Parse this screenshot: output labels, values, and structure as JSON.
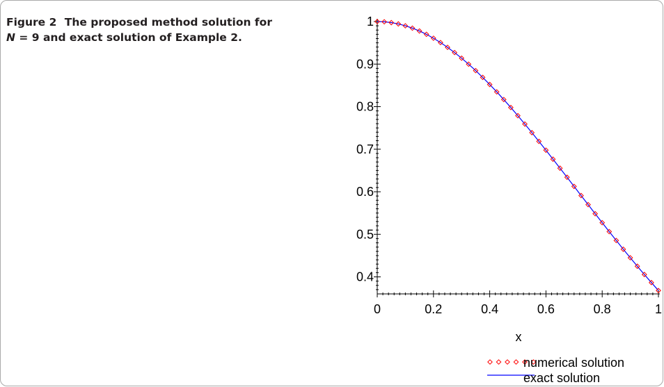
{
  "figure": {
    "label": "Figure 2",
    "caption_part1": "The proposed method solution for",
    "caption_var": "N",
    "caption_part2": " = 9 and exact solution of Example 2."
  },
  "chart_data": {
    "type": "line",
    "title": "",
    "xlabel": "x",
    "ylabel": "",
    "xlim": [
      0,
      1
    ],
    "ylim": [
      0.36,
      1.0
    ],
    "x_ticks": [
      0,
      0.2,
      0.4,
      0.6,
      0.8,
      1
    ],
    "x_tick_labels": [
      "0",
      "0.2",
      "0.4",
      "0.6",
      "0.8",
      "1"
    ],
    "y_ticks": [
      0.4,
      0.5,
      0.6,
      0.7,
      0.8,
      0.9,
      1
    ],
    "y_tick_labels": [
      "0.4",
      "0.5",
      "0.6",
      "0.7",
      "0.8",
      "0.9",
      "1"
    ],
    "grid": false,
    "legend_position": "bottom-right",
    "series": [
      {
        "name": "numerical solution",
        "style": "diamond-markers",
        "color": "#ff0000",
        "x": [
          0,
          0.025,
          0.05,
          0.075,
          0.1,
          0.125,
          0.15,
          0.175,
          0.2,
          0.225,
          0.25,
          0.275,
          0.3,
          0.325,
          0.35,
          0.375,
          0.4,
          0.425,
          0.45,
          0.475,
          0.5,
          0.525,
          0.55,
          0.575,
          0.6,
          0.625,
          0.65,
          0.675,
          0.7,
          0.725,
          0.75,
          0.775,
          0.8,
          0.825,
          0.85,
          0.875,
          0.9,
          0.925,
          0.95,
          0.975,
          1
        ],
        "y": [
          1.0,
          0.9994,
          0.9975,
          0.9944,
          0.99,
          0.9845,
          0.9778,
          0.97,
          0.9608,
          0.9506,
          0.9394,
          0.9271,
          0.9139,
          0.8998,
          0.8847,
          0.8688,
          0.8521,
          0.8347,
          0.8167,
          0.798,
          0.7788,
          0.7591,
          0.7389,
          0.7184,
          0.6977,
          0.6766,
          0.6554,
          0.6341,
          0.6126,
          0.5911,
          0.5698,
          0.5484,
          0.5273,
          0.5063,
          0.4855,
          0.465,
          0.4449,
          0.425,
          0.4056,
          0.3866,
          0.3679
        ]
      },
      {
        "name": "exact solution",
        "style": "line",
        "color": "#0000ff",
        "x": [
          0,
          0.025,
          0.05,
          0.075,
          0.1,
          0.125,
          0.15,
          0.175,
          0.2,
          0.225,
          0.25,
          0.275,
          0.3,
          0.325,
          0.35,
          0.375,
          0.4,
          0.425,
          0.45,
          0.475,
          0.5,
          0.525,
          0.55,
          0.575,
          0.6,
          0.625,
          0.65,
          0.675,
          0.7,
          0.725,
          0.75,
          0.775,
          0.8,
          0.825,
          0.85,
          0.875,
          0.9,
          0.925,
          0.95,
          0.975,
          1
        ],
        "y": [
          1.0,
          0.9994,
          0.9975,
          0.9944,
          0.99,
          0.9845,
          0.9778,
          0.97,
          0.9608,
          0.9506,
          0.9394,
          0.9271,
          0.9139,
          0.8998,
          0.8847,
          0.8688,
          0.8521,
          0.8347,
          0.8167,
          0.798,
          0.7788,
          0.7591,
          0.7389,
          0.7184,
          0.6977,
          0.6766,
          0.6554,
          0.6341,
          0.6126,
          0.5911,
          0.5698,
          0.5484,
          0.5273,
          0.5063,
          0.4855,
          0.465,
          0.4449,
          0.425,
          0.4056,
          0.3866,
          0.3679
        ]
      }
    ]
  }
}
